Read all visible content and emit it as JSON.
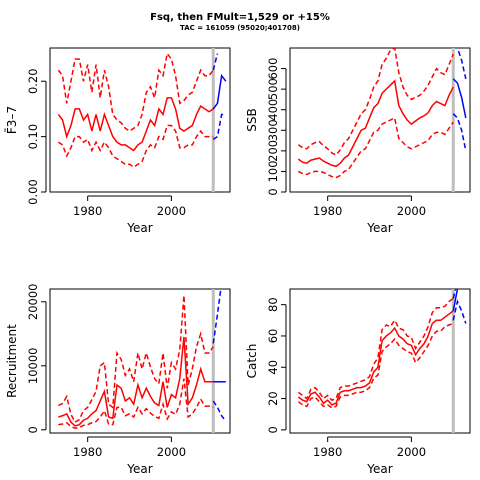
{
  "title": "Fsq, then FMult=1,529 or +15%",
  "subtitle": "TAC = 161059 (95020;401708)",
  "colors": {
    "hindcast": "#ff0000",
    "forecast": "#0000ff",
    "marker": "#bebebe",
    "axis": "#000000"
  },
  "chart_data": [
    {
      "type": "line",
      "ylabel": "F̄3–7",
      "xlabel": "Year",
      "xlim": [
        1971,
        2014
      ],
      "ylim": [
        0,
        0.26
      ],
      "xticks": [
        1980,
        2000
      ],
      "yticks": [
        0.0,
        0.1,
        0.2
      ],
      "ytick_labels": [
        "0.00",
        "0.10",
        "0.20"
      ],
      "marker_year": 2010,
      "x": [
        1973,
        1974,
        1975,
        1976,
        1977,
        1978,
        1979,
        1980,
        1981,
        1982,
        1983,
        1984,
        1985,
        1986,
        1987,
        1988,
        1989,
        1990,
        1991,
        1992,
        1993,
        1994,
        1995,
        1996,
        1997,
        1998,
        1999,
        2000,
        2001,
        2002,
        2003,
        2004,
        2005,
        2006,
        2007,
        2008,
        2009,
        2010
      ],
      "series": [
        {
          "role": "estimate",
          "values": [
            0.14,
            0.13,
            0.1,
            0.12,
            0.15,
            0.15,
            0.13,
            0.14,
            0.11,
            0.14,
            0.11,
            0.14,
            0.12,
            0.1,
            0.09,
            0.085,
            0.085,
            0.08,
            0.075,
            0.085,
            0.09,
            0.11,
            0.13,
            0.12,
            0.15,
            0.14,
            0.17,
            0.17,
            0.15,
            0.115,
            0.11,
            0.115,
            0.12,
            0.14,
            0.155,
            0.15,
            0.145,
            0.15
          ]
        },
        {
          "role": "upper",
          "values": [
            0.22,
            0.21,
            0.16,
            0.2,
            0.24,
            0.24,
            0.2,
            0.23,
            0.18,
            0.23,
            0.17,
            0.22,
            0.19,
            0.14,
            0.13,
            0.125,
            0.115,
            0.11,
            0.115,
            0.12,
            0.14,
            0.18,
            0.19,
            0.17,
            0.22,
            0.21,
            0.25,
            0.24,
            0.21,
            0.16,
            0.165,
            0.175,
            0.18,
            0.2,
            0.22,
            0.21,
            0.21,
            0.22
          ]
        },
        {
          "role": "lower",
          "values": [
            0.09,
            0.085,
            0.065,
            0.08,
            0.1,
            0.1,
            0.09,
            0.095,
            0.075,
            0.09,
            0.075,
            0.09,
            0.08,
            0.065,
            0.06,
            0.055,
            0.05,
            0.05,
            0.045,
            0.05,
            0.055,
            0.075,
            0.085,
            0.08,
            0.1,
            0.095,
            0.12,
            0.12,
            0.11,
            0.08,
            0.08,
            0.085,
            0.085,
            0.1,
            0.11,
            0.1,
            0.1,
            0.1
          ]
        }
      ],
      "forecast": {
        "x": [
          2010,
          2011,
          2012,
          2013
        ],
        "estimate": [
          0.15,
          0.16,
          0.21,
          0.2
        ],
        "upper": [
          0.22,
          0.25,
          null,
          null
        ],
        "lower": [
          0.095,
          0.1,
          0.14,
          0.14
        ]
      }
    },
    {
      "type": "line",
      "ylabel": "SSB",
      "xlabel": "Year",
      "xlim": [
        1971,
        2014
      ],
      "ylim": [
        0,
        700
      ],
      "xticks": [
        1980,
        2000
      ],
      "yticks": [
        0,
        100,
        200,
        300,
        400,
        500,
        600
      ],
      "ytick_labels": [
        "0",
        "100",
        "200",
        "300",
        "400",
        "500",
        "600"
      ],
      "marker_year": 2010,
      "x": [
        1973,
        1974,
        1975,
        1976,
        1977,
        1978,
        1979,
        1980,
        1981,
        1982,
        1983,
        1984,
        1985,
        1986,
        1987,
        1988,
        1989,
        1990,
        1991,
        1992,
        1993,
        1994,
        1995,
        1996,
        1997,
        1998,
        1999,
        2000,
        2001,
        2002,
        2003,
        2004,
        2005,
        2006,
        2007,
        2008,
        2009,
        2010
      ],
      "series": [
        {
          "role": "estimate",
          "values": [
            160,
            145,
            140,
            155,
            160,
            165,
            150,
            140,
            130,
            125,
            140,
            165,
            180,
            220,
            260,
            300,
            310,
            360,
            410,
            430,
            480,
            500,
            520,
            540,
            420,
            380,
            350,
            330,
            345,
            360,
            370,
            385,
            420,
            440,
            430,
            420,
            470,
            510
          ]
        },
        {
          "role": "upper",
          "values": [
            230,
            215,
            210,
            230,
            240,
            245,
            225,
            210,
            190,
            180,
            205,
            240,
            260,
            300,
            340,
            380,
            400,
            450,
            510,
            540,
            620,
            650,
            690,
            700,
            580,
            510,
            470,
            450,
            460,
            470,
            490,
            520,
            560,
            600,
            580,
            570,
            620,
            670
          ]
        },
        {
          "role": "lower",
          "values": [
            100,
            90,
            85,
            95,
            100,
            100,
            95,
            85,
            75,
            70,
            80,
            100,
            110,
            140,
            170,
            200,
            210,
            250,
            290,
            300,
            330,
            340,
            350,
            360,
            260,
            240,
            220,
            210,
            220,
            230,
            240,
            250,
            280,
            290,
            290,
            280,
            310,
            340
          ]
        }
      ],
      "forecast": {
        "x": [
          2010,
          2011,
          2012,
          2013
        ],
        "estimate": [
          550,
          530,
          460,
          360
        ],
        "upper": [
          710,
          700,
          640,
          550
        ],
        "lower": [
          380,
          360,
          300,
          200
        ]
      }
    },
    {
      "type": "line",
      "ylabel": "Recruitment",
      "xlabel": "Year",
      "xlim": [
        1971,
        2014
      ],
      "ylim": [
        -500,
        22000
      ],
      "xticks": [
        1980,
        2000
      ],
      "yticks": [
        0,
        10000,
        20000
      ],
      "ytick_labels": [
        "0",
        "10000",
        "20000"
      ],
      "marker_year": 2010,
      "x": [
        1973,
        1974,
        1975,
        1976,
        1977,
        1978,
        1979,
        1980,
        1981,
        1982,
        1983,
        1984,
        1985,
        1986,
        1987,
        1988,
        1989,
        1990,
        1991,
        1992,
        1993,
        1994,
        1995,
        1996,
        1997,
        1998,
        1999,
        2000,
        2001,
        2002,
        2003,
        2004,
        2005,
        2006,
        2007,
        2008,
        2009,
        2010
      ],
      "series": [
        {
          "role": "estimate",
          "values": [
            2000,
            2200,
            2500,
            1200,
            600,
            800,
            1500,
            1800,
            2500,
            3000,
            4500,
            6000,
            2000,
            1800,
            7000,
            6500,
            4500,
            5000,
            4000,
            7000,
            5000,
            6500,
            5200,
            4200,
            3800,
            7500,
            3500,
            5500,
            5000,
            8000,
            14500,
            4000,
            5000,
            7000,
            9500,
            7500,
            7500,
            7500
          ]
        },
        {
          "role": "upper",
          "values": [
            3800,
            4100,
            5200,
            2400,
            1200,
            1600,
            3000,
            3500,
            4700,
            6000,
            10000,
            10500,
            4000,
            3500,
            12000,
            11000,
            8500,
            9500,
            7500,
            12000,
            9500,
            12000,
            9800,
            8000,
            7200,
            12000,
            6500,
            10500,
            9500,
            12500,
            21000,
            7000,
            9500,
            13000,
            15000,
            12000,
            12000,
            13000
          ]
        },
        {
          "role": "lower",
          "values": [
            800,
            900,
            1100,
            500,
            250,
            350,
            700,
            800,
            1100,
            1300,
            2000,
            3000,
            900,
            800,
            3500,
            3500,
            2200,
            2500,
            2000,
            3500,
            2500,
            3300,
            2600,
            2100,
            1800,
            4000,
            1700,
            2800,
            2400,
            4000,
            8000,
            2000,
            2500,
            3500,
            4800,
            3700,
            3700,
            3500
          ]
        }
      ],
      "forecast": {
        "x": [
          2010,
          2011,
          2012,
          2013
        ],
        "estimate": [
          7500,
          7500,
          7500,
          7500
        ],
        "upper": [
          13500,
          18000,
          23000,
          23000
        ],
        "lower": [
          4500,
          3500,
          2200,
          1300
        ]
      }
    },
    {
      "type": "line",
      "ylabel": "Catch",
      "xlabel": "Year",
      "xlim": [
        1971,
        2014
      ],
      "ylim": [
        -2,
        90
      ],
      "xticks": [
        1980,
        2000
      ],
      "yticks": [
        0,
        20,
        40,
        60,
        80
      ],
      "ytick_labels": [
        "0",
        "20",
        "40",
        "60",
        "80"
      ],
      "marker_year": 2010,
      "x": [
        1973,
        1974,
        1975,
        1976,
        1977,
        1978,
        1979,
        1980,
        1981,
        1982,
        1983,
        1984,
        1985,
        1986,
        1987,
        1988,
        1989,
        1990,
        1991,
        1992,
        1993,
        1994,
        1995,
        1996,
        1997,
        1998,
        1999,
        2000,
        2001,
        2002,
        2003,
        2004,
        2005,
        2006,
        2007,
        2008,
        2009,
        2010
      ],
      "series": [
        {
          "role": "estimate",
          "values": [
            21,
            19,
            18,
            23,
            24,
            21,
            17,
            19,
            16,
            17,
            24,
            25,
            25,
            26,
            27,
            27,
            28,
            30,
            37,
            40,
            57,
            60,
            62,
            65,
            60,
            58,
            55,
            54,
            48,
            52,
            55,
            60,
            68,
            70,
            70,
            72,
            74,
            76
          ]
        },
        {
          "role": "upper",
          "values": [
            24,
            22,
            20,
            26,
            27,
            24,
            20,
            22,
            19,
            20,
            27,
            28,
            28,
            29,
            30,
            31,
            32,
            34,
            42,
            46,
            64,
            67,
            66,
            70,
            65,
            64,
            60,
            59,
            52,
            56,
            60,
            66,
            75,
            78,
            78,
            79,
            82,
            84
          ]
        },
        {
          "role": "lower",
          "values": [
            18,
            16,
            15,
            20,
            21,
            18,
            15,
            16,
            14,
            15,
            21,
            22,
            22,
            23,
            24,
            24,
            25,
            27,
            33,
            35,
            50,
            53,
            55,
            58,
            54,
            52,
            50,
            49,
            43,
            46,
            50,
            54,
            60,
            63,
            63,
            66,
            67,
            68
          ]
        }
      ],
      "forecast": {
        "x": [
          2010,
          2011,
          2012,
          2013
        ],
        "estimate": [
          76,
          90,
          null,
          null
        ],
        "upper": [
          84,
          95,
          null,
          null
        ],
        "lower": [
          70,
          82,
          76,
          68
        ]
      }
    }
  ]
}
